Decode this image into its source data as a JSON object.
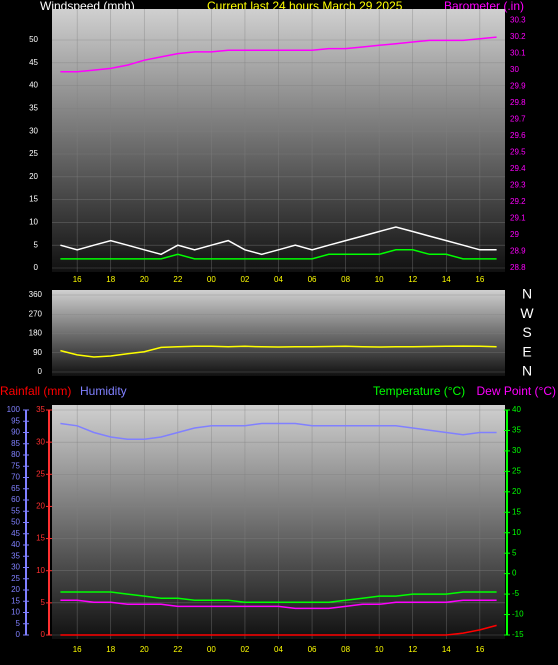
{
  "chart_data": [
    {
      "type": "line",
      "title": "Current last 24 hours March 29 2025",
      "ylabel": "Windspeed (mph)",
      "y2label": "Barometer (.in)",
      "categories": [
        null,
        "16",
        null,
        "18",
        null,
        "20",
        null,
        "22",
        null,
        "00",
        null,
        "02",
        null,
        "04",
        null,
        "06",
        null,
        "08",
        null,
        "10",
        null,
        "12",
        null,
        "14",
        null,
        "16",
        null
      ],
      "ylim": [
        0,
        55.7
      ],
      "yticks": [
        0,
        5,
        10,
        15,
        20,
        25,
        30,
        35,
        40,
        45,
        50
      ],
      "y2lim": [
        28.8,
        30.34
      ],
      "y2ticks": [
        28.8,
        28.9,
        29,
        29.1,
        29.2,
        29.3,
        29.4,
        29.5,
        29.6,
        29.7,
        29.8,
        29.9,
        30,
        30.1,
        30.2,
        30.3
      ],
      "grid": true,
      "series": [
        {
          "color": "#ffffff",
          "values": [
            5,
            4,
            5,
            6,
            5,
            4,
            3,
            5,
            4,
            5,
            6,
            4,
            3,
            4,
            5,
            4,
            5,
            6,
            7,
            8,
            9,
            8,
            7,
            6,
            5,
            4,
            4
          ]
        },
        {
          "color": "#00ff00",
          "values": [
            2,
            2,
            2,
            2,
            2,
            2,
            2,
            3,
            2,
            2,
            2,
            2,
            2,
            2,
            2,
            2,
            3,
            3,
            3,
            3,
            4,
            4,
            3,
            3,
            2,
            2,
            2
          ]
        },
        {
          "color": "#ff00ff",
          "axis": "y2",
          "values": [
            29.99,
            29.99,
            30.0,
            30.01,
            30.03,
            30.06,
            30.08,
            30.1,
            30.11,
            30.11,
            30.12,
            30.12,
            30.12,
            30.12,
            30.12,
            30.12,
            30.13,
            30.13,
            30.14,
            30.15,
            30.16,
            30.17,
            30.18,
            30.18,
            30.18,
            30.19,
            30.2
          ]
        }
      ]
    },
    {
      "type": "line",
      "ylim": [
        0,
        360
      ],
      "yticks": [
        0,
        90,
        180,
        270,
        360
      ],
      "y2lim": [
        0,
        360
      ],
      "y2ticks": [
        {
          "value": 360,
          "label": "N"
        },
        {
          "value": 270,
          "label": "W"
        },
        {
          "value": 180,
          "label": "S"
        },
        {
          "value": 90,
          "label": "E"
        },
        {
          "value": 0,
          "label": "N"
        }
      ],
      "grid": true,
      "series": [
        {
          "color": "#ffff00",
          "values": [
            100,
            80,
            70,
            75,
            85,
            95,
            115,
            118,
            120,
            120,
            118,
            120,
            118,
            117,
            118,
            118,
            119,
            120,
            118,
            117,
            118,
            118,
            119,
            120,
            121,
            120,
            118
          ]
        }
      ]
    },
    {
      "type": "line",
      "categories": [
        null,
        "16",
        null,
        "18",
        null,
        "20",
        null,
        "22",
        null,
        "00",
        null,
        "02",
        null,
        "04",
        null,
        "06",
        null,
        "08",
        null,
        "10",
        null,
        "12",
        null,
        "14",
        null,
        "16",
        null
      ],
      "ylim": [
        0,
        100
      ],
      "yticks": [
        0,
        5,
        10,
        15,
        20,
        25,
        30,
        35,
        40,
        45,
        50,
        55,
        60,
        65,
        70,
        75,
        80,
        85,
        90,
        95,
        100
      ],
      "y2lim": [
        -15,
        40
      ],
      "y2ticks": [
        -15,
        -10,
        -5,
        0,
        5,
        10,
        15,
        20,
        25,
        30,
        35,
        40
      ],
      "y3lim": [
        0,
        35
      ],
      "y3ticks": [
        0,
        5,
        10,
        15,
        20,
        25,
        30,
        35
      ],
      "grid": true,
      "series": [
        {
          "name": "Rainfall (mm)",
          "color": "#ff0000",
          "axis": "y3",
          "values": [
            0,
            0,
            0,
            0,
            0,
            0,
            0,
            0,
            0,
            0,
            0,
            0,
            0,
            0,
            0,
            0,
            0,
            0,
            0,
            0,
            0,
            0,
            0,
            0,
            0.3,
            0.8,
            1.5
          ]
        },
        {
          "name": "Humidity",
          "color": "#8080ff",
          "values": [
            94,
            93,
            90,
            88,
            87,
            87,
            88,
            90,
            92,
            93,
            93,
            93,
            94,
            94,
            94,
            93,
            93,
            93,
            93,
            93,
            93,
            92,
            91,
            90,
            89,
            90,
            90
          ]
        },
        {
          "name": "Temperature (°C)",
          "color": "#00ff00",
          "axis": "y2",
          "values": [
            -4.5,
            -4.5,
            -4.5,
            -4.5,
            -5,
            -5.5,
            -6,
            -6,
            -6.5,
            -6.5,
            -6.5,
            -7,
            -7,
            -7,
            -7,
            -7,
            -7,
            -6.5,
            -6,
            -5.5,
            -5.5,
            -5,
            -5,
            -5,
            -4.5,
            -4.5,
            -4.5
          ]
        },
        {
          "name": "Dew Point (°C)",
          "color": "#ff00ff",
          "axis": "y2",
          "values": [
            -6.5,
            -6.5,
            -7,
            -7,
            -7.5,
            -7.5,
            -7.5,
            -8,
            -8,
            -8,
            -8,
            -8,
            -8,
            -8,
            -8.5,
            -8.5,
            -8.5,
            -8,
            -7.5,
            -7.5,
            -7,
            -7,
            -7,
            -7,
            -6.5,
            -6.5,
            -6.5
          ]
        }
      ]
    }
  ]
}
